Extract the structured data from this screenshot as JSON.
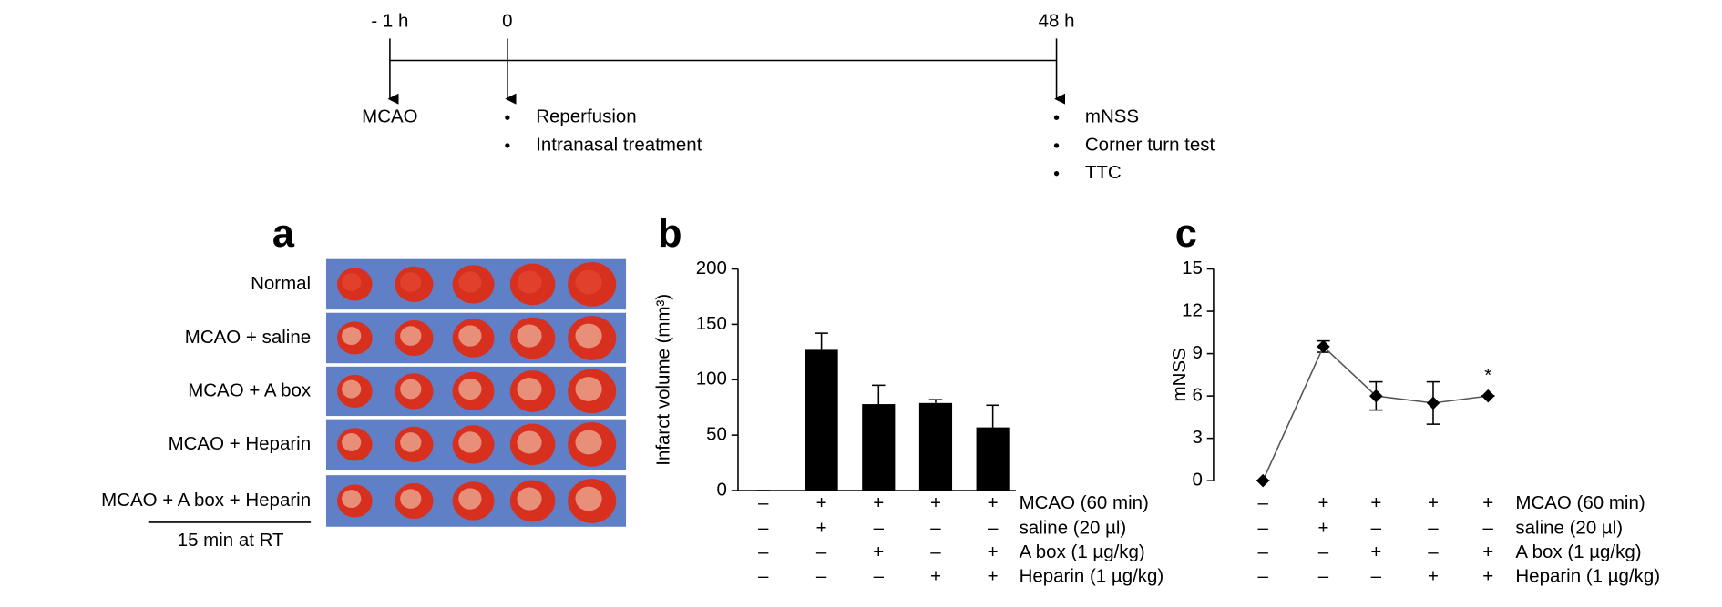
{
  "timeline": {
    "time_labels": [
      "- 1 h",
      "0",
      "48 h"
    ],
    "events": [
      {
        "items": [
          "MCAO"
        ]
      },
      {
        "items": [
          "Reperfusion",
          "Intranasal treatment"
        ]
      },
      {
        "items": [
          "mNSS",
          "Corner turn test",
          "TTC"
        ]
      }
    ]
  },
  "panel_a": {
    "label": "a",
    "rows": [
      "Normal",
      "MCAO + saline",
      "MCAO + A box",
      "MCAO + Heparin",
      "MCAO + A box + Heparin"
    ],
    "note": "15 min at RT"
  },
  "chart_data": [
    {
      "type": "bar",
      "panel_label": "b",
      "y_label": "Infarct volume (mm³)",
      "color": "#000000",
      "values": [
        0,
        127,
        78,
        79,
        57
      ],
      "errors": [
        0,
        15,
        17,
        3,
        20
      ],
      "ylim": [
        0,
        200
      ],
      "yticks": [
        0,
        50,
        100,
        150,
        200
      ],
      "treatments": [
        {
          "name": "MCAO (60 min)",
          "signs": [
            "–",
            "+",
            "+",
            "+",
            "+"
          ]
        },
        {
          "name": "saline (20 µl)",
          "signs": [
            "–",
            "+",
            "–",
            "–",
            "–"
          ]
        },
        {
          "name": "A box (1 µg/kg)",
          "signs": [
            "–",
            "–",
            "+",
            "–",
            "+"
          ]
        },
        {
          "name": "Heparin (1 µg/kg)",
          "signs": [
            "–",
            "–",
            "–",
            "+",
            "+"
          ]
        }
      ]
    },
    {
      "type": "line",
      "panel_label": "c",
      "y_label": "mNSS",
      "color": "#000000",
      "values": [
        0,
        9.5,
        6,
        5.5,
        6
      ],
      "errors": [
        0,
        0.4,
        1,
        1.5,
        0
      ],
      "annotation": "*",
      "ylim": [
        0,
        15
      ],
      "yticks": [
        0,
        3,
        6,
        9,
        12,
        15
      ],
      "treatments": [
        {
          "name": "MCAO (60 min)",
          "signs": [
            "–",
            "+",
            "+",
            "+",
            "+"
          ]
        },
        {
          "name": "saline (20 µl)",
          "signs": [
            "–",
            "+",
            "–",
            "–",
            "–"
          ]
        },
        {
          "name": "A box (1 µg/kg)",
          "signs": [
            "–",
            "–",
            "+",
            "–",
            "+"
          ]
        },
        {
          "name": "Heparin (1 µg/kg)",
          "signs": [
            "–",
            "–",
            "–",
            "+",
            "+"
          ]
        }
      ]
    }
  ]
}
